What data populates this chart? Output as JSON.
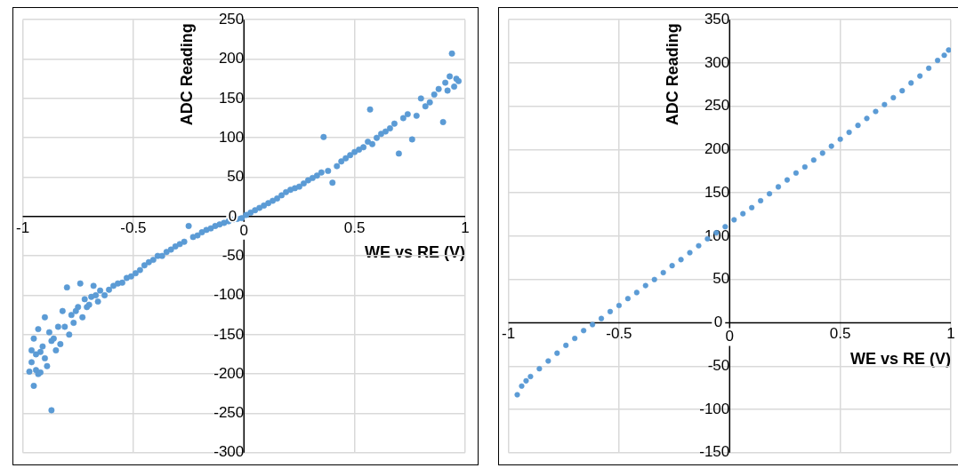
{
  "chart_data": [
    {
      "type": "scatter",
      "xlabel": "WE vs RE (V)",
      "ylabel": "ADC Reading",
      "xlim": [
        -1,
        1
      ],
      "xticks": [
        -1,
        -0.5,
        0,
        0.5,
        1
      ],
      "ylim": [
        -300,
        250
      ],
      "yticks": [
        -300,
        -250,
        -200,
        -150,
        -100,
        -50,
        0,
        50,
        100,
        150,
        200,
        250
      ],
      "grid": true,
      "marker": "circle",
      "legend": false,
      "series": [
        {
          "color": "#5b9bd5",
          "x": [
            -0.97,
            -0.96,
            -0.96,
            -0.95,
            -0.95,
            -0.94,
            -0.94,
            -0.93,
            -0.93,
            -0.92,
            -0.92,
            -0.91,
            -0.9,
            -0.9,
            -0.89,
            -0.88,
            -0.87,
            -0.87,
            -0.86,
            -0.85,
            -0.84,
            -0.83,
            -0.82,
            -0.81,
            -0.8,
            -0.79,
            -0.78,
            -0.77,
            -0.76,
            -0.75,
            -0.74,
            -0.73,
            -0.72,
            -0.71,
            -0.7,
            -0.69,
            -0.68,
            -0.67,
            -0.66,
            -0.65,
            -0.63,
            -0.61,
            -0.59,
            -0.57,
            -0.55,
            -0.53,
            -0.51,
            -0.49,
            -0.47,
            -0.45,
            -0.43,
            -0.41,
            -0.39,
            -0.37,
            -0.35,
            -0.33,
            -0.31,
            -0.29,
            -0.27,
            -0.25,
            -0.23,
            -0.21,
            -0.19,
            -0.17,
            -0.15,
            -0.13,
            -0.11,
            -0.09,
            -0.07,
            -0.05,
            -0.03,
            -0.01,
            0.01,
            0.03,
            0.05,
            0.07,
            0.09,
            0.11,
            0.13,
            0.15,
            0.17,
            0.19,
            0.21,
            0.23,
            0.25,
            0.27,
            0.29,
            0.31,
            0.33,
            0.35,
            0.36,
            0.38,
            0.4,
            0.42,
            0.44,
            0.46,
            0.48,
            0.5,
            0.52,
            0.54,
            0.56,
            0.57,
            0.58,
            0.6,
            0.62,
            0.64,
            0.66,
            0.68,
            0.7,
            0.72,
            0.74,
            0.76,
            0.78,
            0.8,
            0.82,
            0.84,
            0.86,
            0.88,
            0.9,
            0.91,
            0.92,
            0.93,
            0.94,
            0.95,
            0.96,
            0.97
          ],
          "values": [
            -197,
            -185,
            -170,
            -215,
            -155,
            -175,
            -195,
            -143,
            -200,
            -172,
            -198,
            -165,
            -128,
            -180,
            -190,
            -147,
            -246,
            -158,
            -155,
            -170,
            -140,
            -162,
            -120,
            -140,
            -90,
            -150,
            -125,
            -135,
            -120,
            -115,
            -85,
            -128,
            -105,
            -115,
            -112,
            -102,
            -88,
            -100,
            -108,
            -94,
            -100,
            -93,
            -88,
            -85,
            -84,
            -78,
            -76,
            -72,
            -68,
            -62,
            -58,
            -55,
            -50,
            -50,
            -45,
            -42,
            -38,
            -35,
            -32,
            -12,
            -26,
            -24,
            -20,
            -17,
            -15,
            -12,
            -10,
            -8,
            -6,
            -4,
            -3,
            -2,
            2,
            5,
            8,
            11,
            14,
            17,
            20,
            23,
            27,
            31,
            34,
            36,
            38,
            42,
            46,
            49,
            52,
            56,
            101,
            58,
            43,
            64,
            70,
            74,
            78,
            82,
            85,
            88,
            95,
            136,
            92,
            100,
            105,
            108,
            112,
            118,
            80,
            125,
            130,
            98,
            128,
            150,
            140,
            145,
            155,
            162,
            120,
            170,
            160,
            178,
            207,
            165,
            175,
            172
          ]
        }
      ]
    },
    {
      "type": "scatter",
      "xlabel": "WE vs RE (V)",
      "ylabel": "ADC Reading",
      "xlim": [
        -1,
        1
      ],
      "xticks": [
        -1,
        -0.5,
        0,
        0.5,
        1
      ],
      "ylim": [
        -150,
        350
      ],
      "yticks": [
        -150,
        -100,
        -50,
        0,
        50,
        100,
        150,
        200,
        250,
        300,
        350
      ],
      "grid": true,
      "marker": "circle",
      "legend": false,
      "series": [
        {
          "color": "#5b9bd5",
          "x": [
            -0.96,
            -0.94,
            -0.92,
            -0.9,
            -0.86,
            -0.82,
            -0.78,
            -0.74,
            -0.7,
            -0.66,
            -0.62,
            -0.58,
            -0.54,
            -0.5,
            -0.46,
            -0.42,
            -0.38,
            -0.34,
            -0.3,
            -0.26,
            -0.22,
            -0.18,
            -0.14,
            -0.1,
            -0.06,
            -0.02,
            0.02,
            0.06,
            0.1,
            0.14,
            0.18,
            0.22,
            0.26,
            0.3,
            0.34,
            0.38,
            0.42,
            0.46,
            0.5,
            0.54,
            0.58,
            0.62,
            0.66,
            0.7,
            0.74,
            0.78,
            0.82,
            0.86,
            0.9,
            0.94,
            0.97,
            0.99
          ],
          "values": [
            -83,
            -73,
            -67,
            -62,
            -53,
            -44,
            -35,
            -26,
            -18,
            -9,
            -2,
            5,
            13,
            20,
            28,
            35,
            43,
            50,
            58,
            66,
            73,
            81,
            89,
            97,
            104,
            111,
            119,
            126,
            133,
            141,
            149,
            157,
            165,
            173,
            180,
            188,
            196,
            204,
            212,
            220,
            228,
            236,
            244,
            252,
            260,
            268,
            277,
            285,
            294,
            303,
            309,
            315
          ]
        }
      ]
    }
  ]
}
